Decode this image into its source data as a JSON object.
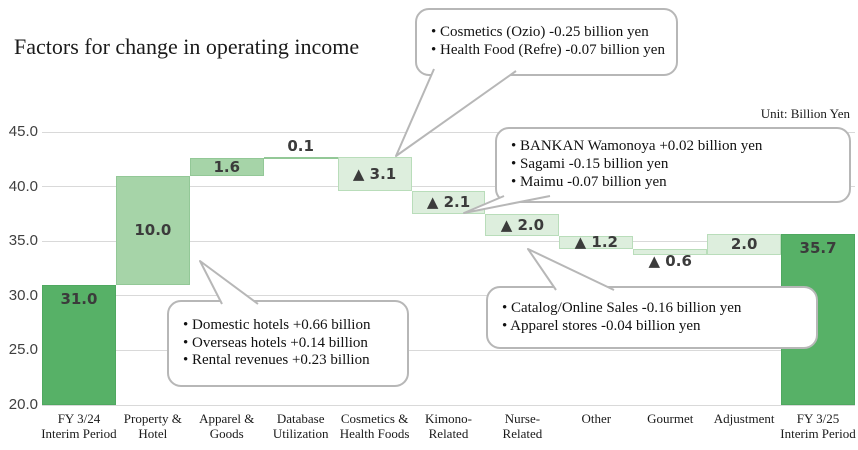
{
  "title": "Factors for change in operating income",
  "unit_note": "Unit: Billion Yen",
  "chart_data": {
    "type": "bar",
    "subtype": "waterfall",
    "title": "Factors for change in operating income",
    "unit": "Unit: Billion Yen",
    "y_axis": {
      "min": 20.0,
      "max": 45.0,
      "step": 5.0,
      "tick_labels": [
        "45.0",
        "40.0",
        "35.0",
        "30.0",
        "25.0",
        "20.0"
      ],
      "grid": true
    },
    "bars": [
      {
        "category_lines": [
          "FY 3/24",
          "Interim Period"
        ],
        "label": "31.0",
        "value": 31.0,
        "kind": "total",
        "label_pos": "inside-top"
      },
      {
        "category_lines": [
          "Property &",
          "Hotel"
        ],
        "label": "10.0",
        "value": 10.0,
        "kind": "increase",
        "label_pos": "center"
      },
      {
        "category_lines": [
          "Apparel &",
          "Goods"
        ],
        "label": "1.6",
        "value": 1.6,
        "kind": "increase",
        "label_pos": "center"
      },
      {
        "category_lines": [
          "Database",
          "Utilization"
        ],
        "label": "0.1",
        "value": 0.1,
        "kind": "increase",
        "label_pos": "above"
      },
      {
        "category_lines": [
          "Cosmetics &",
          "Health Foods"
        ],
        "label": "▲ 3.1",
        "value": -3.1,
        "kind": "decrease",
        "label_pos": "center"
      },
      {
        "category_lines": [
          "Kimono-",
          "Related"
        ],
        "label": "▲ 2.1",
        "value": -2.1,
        "kind": "decrease",
        "label_pos": "center"
      },
      {
        "category_lines": [
          "Nurse-",
          "Related"
        ],
        "label": "▲ 2.0",
        "value": -2.0,
        "kind": "decrease",
        "label_pos": "center"
      },
      {
        "category_lines": [
          "Other"
        ],
        "label": "▲ 1.2",
        "value": -1.2,
        "kind": "decrease",
        "label_pos": "center"
      },
      {
        "category_lines": [
          "Gourmet"
        ],
        "label": "▲ 0.6",
        "value": -0.6,
        "kind": "decrease",
        "label_pos": "below"
      },
      {
        "category_lines": [
          "Adjustment"
        ],
        "label": "2.0",
        "value": 2.0,
        "kind": "adjustment",
        "label_pos": "center"
      },
      {
        "category_lines": [
          "FY 3/25",
          "Interim Period"
        ],
        "label": "35.7",
        "value": 35.7,
        "kind": "total",
        "label_pos": "inside-top"
      }
    ],
    "colors": {
      "total": "#57b167",
      "total_border": "#4fa860",
      "increase": "#a6d4a8",
      "increase_border": "#93c897",
      "decrease": "#ddeedd",
      "decrease_border": "#b9ddba",
      "adjustment": "#ddeedd",
      "adjustment_border": "#b9ddba",
      "gridline": "#d9d9d9",
      "value_label": "#3b3b3b"
    },
    "callouts": [
      {
        "target": "cosmetics-health-foods",
        "lines": [
          "• Cosmetics (Ozio) -0.25 billion yen",
          "• Health Food (Refre) -0.07 billion yen"
        ]
      },
      {
        "target": "kimono-related",
        "lines": [
          "• BANKAN Wamonoya +0.02 billion yen",
          "• Sagami -0.15 billion yen",
          "• Maimu -0.07 billion yen"
        ]
      },
      {
        "target": "property-hotel",
        "lines": [
          "• Domestic hotels +0.66 billion",
          "• Overseas hotels +0.14 billion",
          "• Rental revenues +0.23 billion"
        ]
      },
      {
        "target": "nurse-related",
        "lines": [
          "• Catalog/Online Sales -0.16 billion yen",
          "• Apparel stores -0.04 billion yen"
        ]
      }
    ]
  }
}
